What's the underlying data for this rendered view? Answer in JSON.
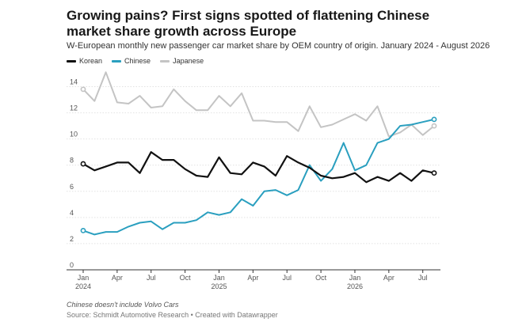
{
  "title": "Growing pains? First signs spotted of flattening Chinese market share growth across Europe",
  "subtitle": "W-European monthly new passenger car market share by OEM country of origin. January 2024 - August 2026",
  "note": "Chinese doesn't include Volvo Cars",
  "source": "Source: Schmidt Automotive Research • Created with Datawrapper",
  "chart_data": {
    "type": "line",
    "x": [
      "Jan 2024",
      "Feb 2024",
      "Mar 2024",
      "Apr 2024",
      "May 2024",
      "Jun 2024",
      "Jul 2024",
      "Aug 2024",
      "Sep 2024",
      "Oct 2024",
      "Nov 2024",
      "Dec 2024",
      "Jan 2025",
      "Feb 2025",
      "Mar 2025",
      "Apr 2025",
      "May 2025",
      "Jun 2025",
      "Jul 2025",
      "Aug 2025",
      "Sep 2025",
      "Oct 2025",
      "Nov 2025",
      "Dec 2025",
      "Jan 2026",
      "Feb 2026",
      "Mar 2026",
      "Apr 2026",
      "May 2026",
      "Jun 2026",
      "Jul 2026",
      "Aug 2026"
    ],
    "x_ticks": [
      {
        "index": 0,
        "label": "Jan",
        "sub": "2024"
      },
      {
        "index": 3,
        "label": "Apr",
        "sub": ""
      },
      {
        "index": 6,
        "label": "Jul",
        "sub": ""
      },
      {
        "index": 9,
        "label": "Oct",
        "sub": ""
      },
      {
        "index": 12,
        "label": "Jan",
        "sub": "2025"
      },
      {
        "index": 15,
        "label": "Apr",
        "sub": ""
      },
      {
        "index": 18,
        "label": "Jul",
        "sub": ""
      },
      {
        "index": 21,
        "label": "Oct",
        "sub": ""
      },
      {
        "index": 24,
        "label": "Jan",
        "sub": "2026"
      },
      {
        "index": 27,
        "label": "Apr",
        "sub": ""
      },
      {
        "index": 30,
        "label": "Jul",
        "sub": ""
      }
    ],
    "y_ticks": [
      0,
      2,
      4,
      6,
      8,
      10,
      12,
      14
    ],
    "ylim": [
      0,
      15
    ],
    "grid": true,
    "legend_position": "top-left",
    "series": [
      {
        "name": "Korean",
        "color": "#111111",
        "width": 2.2,
        "values": [
          8.1,
          7.6,
          7.9,
          8.2,
          8.2,
          7.4,
          9.0,
          8.4,
          8.4,
          7.7,
          7.2,
          7.1,
          8.6,
          7.4,
          7.3,
          8.2,
          7.9,
          7.2,
          8.7,
          8.2,
          7.8,
          7.2,
          7.0,
          7.1,
          7.4,
          6.7,
          7.1,
          6.8,
          7.4,
          6.8,
          7.6,
          7.4
        ]
      },
      {
        "name": "Chinese",
        "color": "#2a9fbf",
        "width": 2.0,
        "values": [
          3.0,
          2.7,
          2.9,
          2.9,
          3.3,
          3.6,
          3.7,
          3.1,
          3.6,
          3.6,
          3.8,
          4.4,
          4.2,
          4.4,
          5.4,
          4.9,
          6.0,
          6.1,
          5.7,
          6.1,
          8.0,
          6.8,
          7.7,
          9.7,
          7.6,
          8.0,
          9.7,
          10.0,
          11.0,
          11.1,
          11.3,
          11.5
        ]
      },
      {
        "name": "Japanese",
        "color": "#c4c4c4",
        "width": 2.0,
        "values": [
          13.8,
          12.9,
          15.1,
          12.8,
          12.7,
          13.3,
          12.4,
          12.5,
          13.8,
          12.9,
          12.2,
          12.2,
          13.3,
          12.5,
          13.5,
          11.4,
          11.4,
          11.3,
          11.3,
          10.6,
          12.5,
          10.9,
          11.1,
          11.5,
          11.9,
          11.4,
          12.5,
          10.2,
          10.5,
          11.1,
          10.3,
          11.0
        ]
      }
    ]
  }
}
